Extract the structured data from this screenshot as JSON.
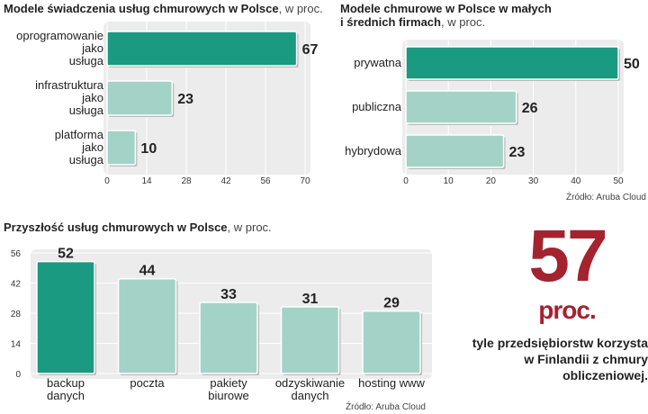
{
  "chart_data": [
    {
      "type": "bar",
      "orientation": "horizontal",
      "title": "Modele  świadczenia usług chmurowych w Polsce",
      "unit": ", w proc.",
      "categories": [
        "oprogramowanie\njako\nusługa",
        "infrastruktura\njako\nusługa",
        "platforma\njako\nusługa"
      ],
      "values": [
        67,
        23,
        10
      ],
      "xlim": [
        0,
        70
      ],
      "xticks": [
        "0",
        "14",
        "28",
        "42",
        "56",
        "70"
      ],
      "grid": true
    },
    {
      "type": "bar",
      "orientation": "horizontal",
      "title": "Modele chmurowe w  Polsce w małych\ni średnich firmach",
      "unit": ", w proc.",
      "categories": [
        "prywatna",
        "publiczna",
        "hybrydowa"
      ],
      "values": [
        50,
        26,
        23
      ],
      "xlim": [
        0,
        50
      ],
      "xticks": [
        "0",
        "10",
        "20",
        "30",
        "40",
        "50"
      ],
      "grid": true,
      "source": "Źródło: Aruba Cloud"
    },
    {
      "type": "bar",
      "orientation": "vertical",
      "title": "Przyszłość usług chmurowych w Polsce",
      "unit": ", w proc.",
      "categories": [
        "backup\ndanych",
        "poczta",
        "pakiety\nbiurowe",
        "odzyskiwanie\ndanych",
        "hosting www"
      ],
      "values": [
        52,
        44,
        33,
        31,
        29
      ],
      "ylim": [
        0,
        56
      ],
      "yticks": [
        "0",
        "14",
        "28",
        "42",
        "56"
      ],
      "grid": true,
      "source": "Źródło: Aruba Cloud"
    }
  ],
  "highlight": {
    "number": "57",
    "unit": "proc.",
    "text": "tyle przedsiębiorstw korzysta\nw Finlandii z chmury\nobliczeniowej."
  },
  "colors": {
    "accent": "#1a9a80",
    "light": "#a3d3c7",
    "panel": "#ececec",
    "highlight_red": "#a3232f"
  }
}
